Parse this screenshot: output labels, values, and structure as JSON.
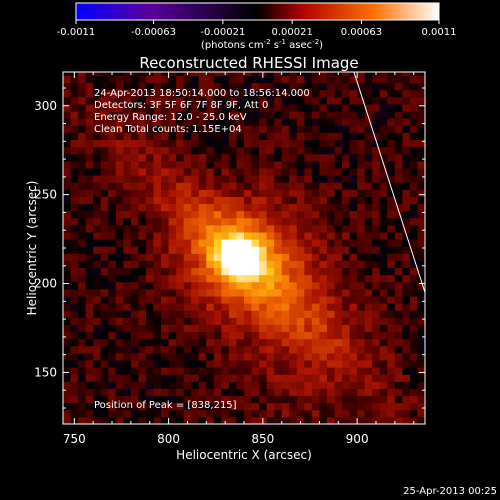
{
  "chart_data": {
    "type": "heatmap",
    "title": "Reconstructed RHESSI Image",
    "xlabel": "Heliocentric X (arcsec)",
    "ylabel": "Heliocentric Y (arcsec)",
    "xlim": [
      744,
      936
    ],
    "ylim": [
      121,
      319
    ],
    "x_ticks": [
      750,
      800,
      850,
      900
    ],
    "y_ticks": [
      150,
      200,
      250,
      300
    ],
    "colorbar": {
      "range": [
        -0.0011,
        0.0011
      ],
      "ticks": [
        "-0.0011",
        "-0.00063",
        "-0.00021",
        "0.00021",
        "0.00063",
        "0.0011"
      ],
      "tick_values": [
        -0.0011,
        -0.00063,
        -0.00021,
        0.00021,
        0.00063,
        0.0011
      ],
      "unit_label": {
        "prefix": "(photons cm",
        "exp1": "-2",
        "mid1": " s",
        "exp2": "-1",
        "mid2": " asec",
        "exp3": "-2",
        "suffix": ")"
      },
      "colors": [
        "#0000ff",
        "#5a00a0",
        "#000000",
        "#b00000",
        "#ff7000",
        "#ffffff"
      ]
    },
    "annotations": [
      "24-Apr-2013 18:50:14.000 to 18:56:14.000",
      "Detectors: 3F 5F 6F 7F 8F 9F, Att 0",
      "Energy Range: 12.0 - 25.0 keV",
      "Clean     Total counts: 1.15E+04"
    ],
    "peak_label": "Position of Peak = [838,215]",
    "peak": [
      838,
      215
    ],
    "limb_line": [
      [
        898,
        320
      ],
      [
        936,
        195
      ]
    ]
  },
  "footer_timestamp": "25-Apr-2013 00:25"
}
